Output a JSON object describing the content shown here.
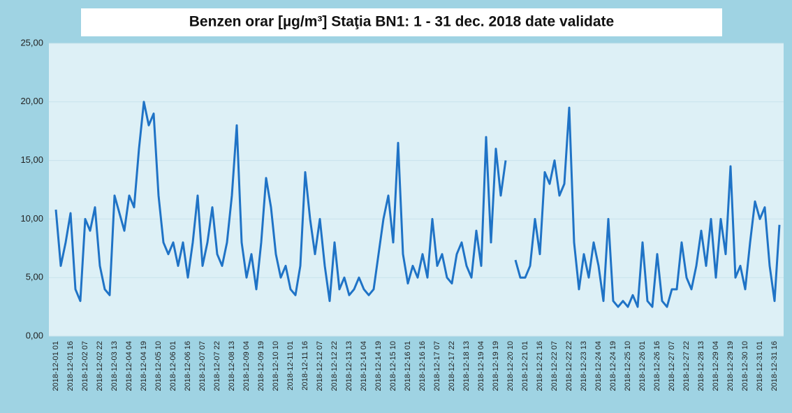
{
  "chart_data": {
    "type": "line",
    "title": "Benzen orar [µg/m³] Staţia BN1: 1 - 31 dec. 2018 date validate",
    "categories": [
      "2018-12-01 01",
      null,
      null,
      "2018-12-01 16",
      null,
      null,
      "2018-12-02 07",
      null,
      null,
      "2018-12-02 22",
      null,
      null,
      "2018-12-03 13",
      null,
      null,
      "2018-12-04 04",
      null,
      null,
      "2018-12-04 19",
      null,
      null,
      "2018-12-05 10",
      null,
      null,
      "2018-12-06 01",
      null,
      null,
      "2018-12-06 16",
      null,
      null,
      "2018-12-07 07",
      null,
      null,
      "2018-12-07 22",
      null,
      null,
      "2018-12-08 13",
      null,
      null,
      "2018-12-09 04",
      null,
      null,
      "2018-12-09 19",
      null,
      null,
      "2018-12-10 10",
      null,
      null,
      "2018-12-11 01",
      null,
      null,
      "2018-12-11 16",
      null,
      null,
      "2018-12-12 07",
      null,
      null,
      "2018-12-12 22",
      null,
      null,
      "2018-12-13 13",
      null,
      null,
      "2018-12-14 04",
      null,
      null,
      "2018-12-14 19",
      null,
      null,
      "2018-12-15 10",
      null,
      null,
      "2018-12-16 01",
      null,
      null,
      "2018-12-16 16",
      null,
      null,
      "2018-12-17 07",
      null,
      null,
      "2018-12-17 22",
      null,
      null,
      "2018-12-18 13",
      null,
      null,
      "2018-12-19 04",
      null,
      null,
      "2018-12-19 19",
      null,
      null,
      "2018-12-20 10",
      null,
      null,
      "2018-12-21 01",
      null,
      null,
      "2018-12-21 16",
      null,
      null,
      "2018-12-22 07",
      null,
      null,
      "2018-12-22 22",
      null,
      null,
      "2018-12-23 13",
      null,
      null,
      "2018-12-24 04",
      null,
      null,
      "2018-12-24 19",
      null,
      null,
      "2018-12-25 10",
      null,
      null,
      "2018-12-26 01",
      null,
      null,
      "2018-12-26 16",
      null,
      null,
      "2018-12-27 07",
      null,
      null,
      "2018-12-27 22",
      null,
      null,
      "2018-12-28 13",
      null,
      null,
      "2018-12-29 04",
      null,
      null,
      "2018-12-29 19",
      null,
      null,
      "2018-12-30 10",
      null,
      null,
      "2018-12-31 01",
      null,
      null,
      "2018-12-31 16",
      null
    ],
    "series": [
      {
        "color": "#1f73c6",
        "values": [
          10.8,
          6,
          8,
          10.5,
          4,
          3,
          10,
          9,
          11,
          6,
          4,
          3.5,
          12,
          10.5,
          9,
          12,
          11,
          16,
          20,
          18,
          19,
          12,
          8,
          7,
          8,
          6,
          8,
          5,
          8,
          12,
          6,
          8,
          11,
          7,
          6,
          8,
          12,
          18,
          8,
          5,
          7,
          4,
          8,
          13.5,
          11,
          7,
          5,
          6,
          4,
          3.5,
          6,
          14,
          10,
          7,
          10,
          6,
          3,
          8,
          4,
          5,
          3.5,
          4,
          5,
          4,
          3.5,
          4,
          7,
          10,
          12,
          8,
          16.5,
          7,
          4.5,
          6,
          5,
          7,
          5,
          10,
          6,
          7,
          5,
          4.5,
          7,
          8,
          6,
          5,
          9,
          6,
          17,
          8,
          16,
          12,
          15,
          null,
          6.5,
          5,
          5,
          6,
          10,
          7,
          14,
          13,
          15,
          12,
          13,
          19.5,
          8,
          4,
          7,
          5,
          8,
          6,
          3,
          10,
          3,
          2.5,
          3,
          2.5,
          3.5,
          2.5,
          8,
          3,
          2.5,
          7,
          3,
          2.5,
          4,
          4,
          8,
          5,
          4,
          6,
          9,
          6,
          10,
          5,
          10,
          7,
          14.5,
          5,
          6,
          4,
          8,
          11.5,
          10,
          11,
          6,
          3,
          9.5
        ]
      }
    ],
    "ylim": [
      0,
      25
    ],
    "yticks": [
      {
        "value": 0,
        "label": "0,00"
      },
      {
        "value": 5,
        "label": "5,00"
      },
      {
        "value": 10,
        "label": "10,00"
      },
      {
        "value": 15,
        "label": "15,00"
      },
      {
        "value": 20,
        "label": "20,00"
      },
      {
        "value": 25,
        "label": "25,00"
      }
    ],
    "grid": true
  }
}
